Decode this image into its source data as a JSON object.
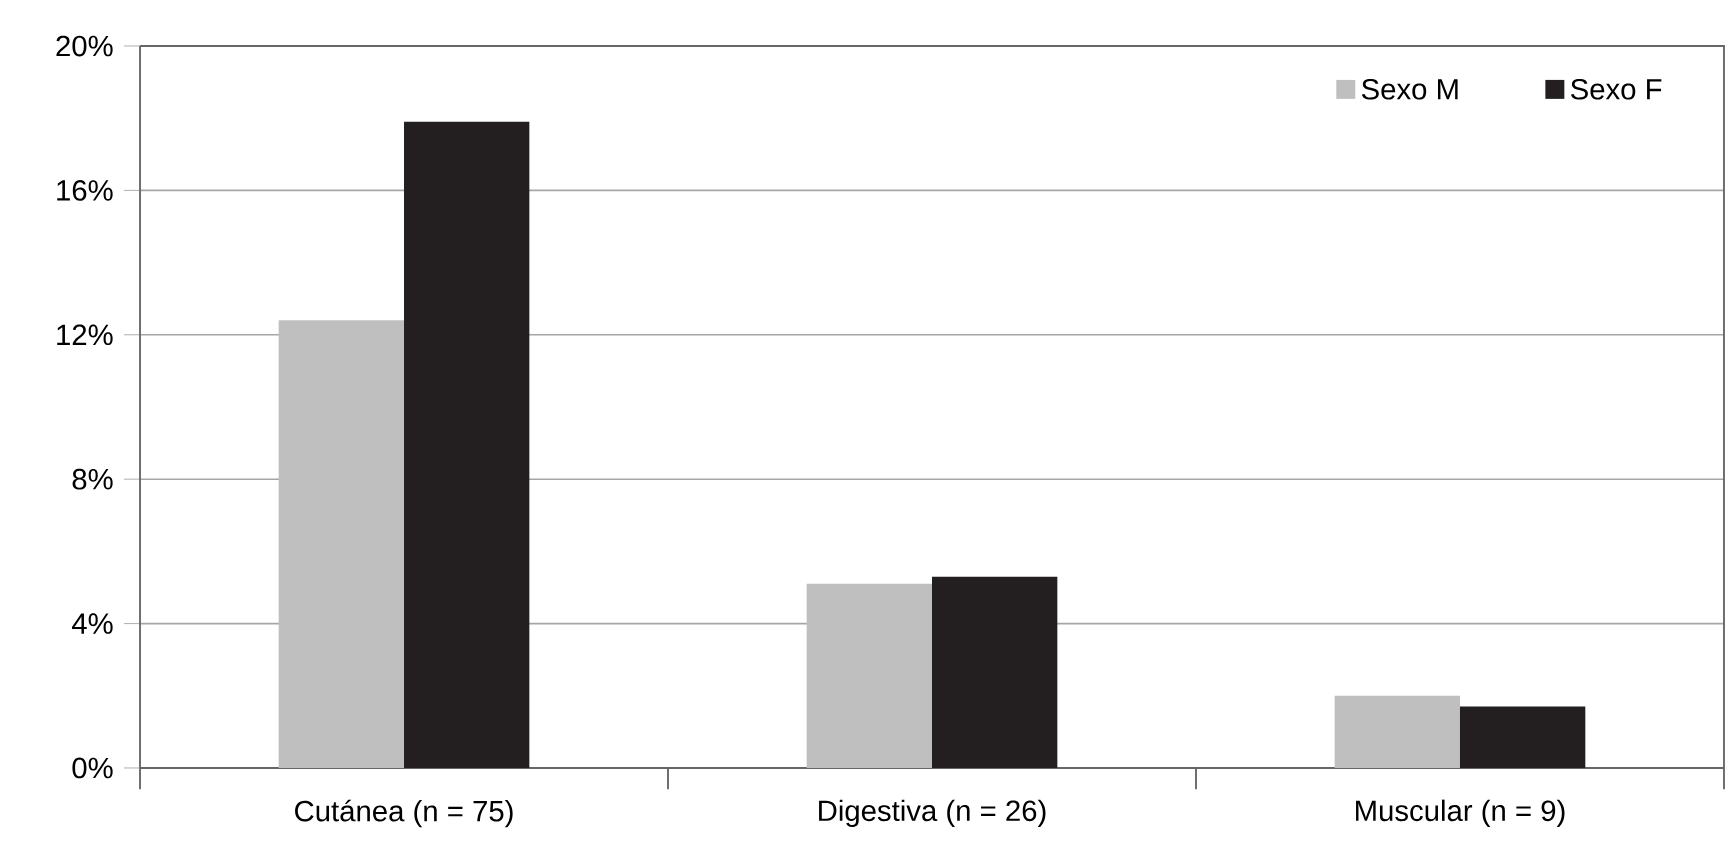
{
  "chart_data": {
    "type": "bar",
    "categories": [
      "Cutánea (n = 75)",
      "Digestiva (n = 26)",
      "Muscular (n = 9)"
    ],
    "series": [
      {
        "name": "Sexo M",
        "color": "#bfbfbf",
        "values": [
          12.4,
          5.1,
          2.0
        ]
      },
      {
        "name": "Sexo F",
        "color": "#231f20",
        "values": [
          17.9,
          5.3,
          1.7
        ]
      }
    ],
    "ylim": [
      0,
      20
    ],
    "yticks": [
      {
        "value": 0,
        "label": "0%"
      },
      {
        "value": 4,
        "label": "4%"
      },
      {
        "value": 8,
        "label": "8%"
      },
      {
        "value": 12,
        "label": "12%"
      },
      {
        "value": 16,
        "label": "16%"
      },
      {
        "value": 20,
        "label": "20%"
      }
    ],
    "grid": "y",
    "legend": "top right"
  }
}
